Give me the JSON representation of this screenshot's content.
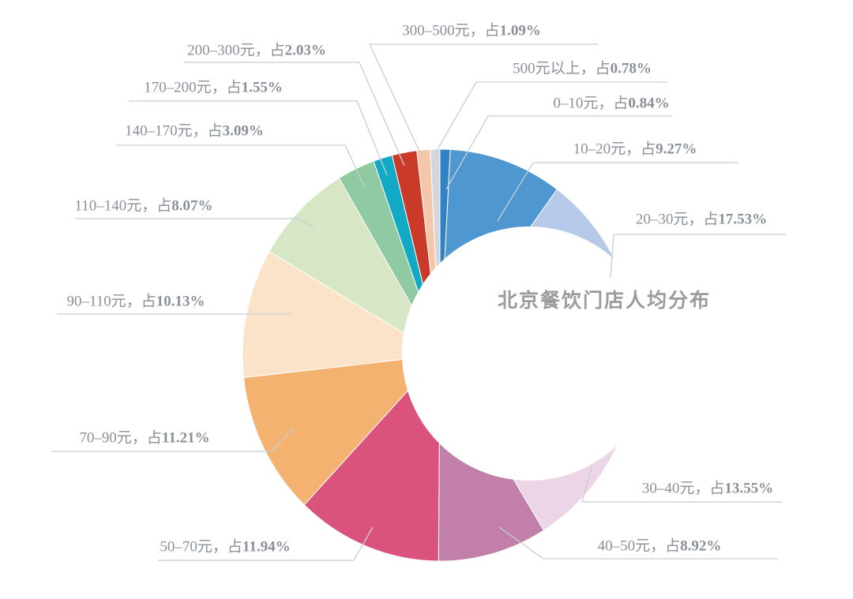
{
  "chart_data": {
    "type": "pie",
    "title": "北京餐饮门店人均分布",
    "style_hint": "crescent-moon pie: full pie with offset white inner circle, thick ring on left, tapering tips on right",
    "legend_position": "none",
    "background_color": "#ffffff",
    "leader_line_color": "#c8cdd3",
    "label_text_color": "#8a9097",
    "title_color": "#9b9b9b",
    "start_angle_deg": 0,
    "direction": "clockwise",
    "label_format": {
      "separator": "，",
      "pct_prefix": "占",
      "pct_suffix": "%"
    },
    "slices": [
      {
        "range": "0–10元",
        "pct": 0.84,
        "color": "#3182c4"
      },
      {
        "range": "10–20元",
        "pct": 9.27,
        "color": "#4f97d1"
      },
      {
        "range": "20–30元",
        "pct": 17.53,
        "color": "#b6c9e9"
      },
      {
        "range": "30–40元",
        "pct": 13.55,
        "color": "#ecd5e6"
      },
      {
        "range": "40–50元",
        "pct": 8.92,
        "color": "#c17fa9"
      },
      {
        "range": "50–70元",
        "pct": 11.94,
        "color": "#d9537d"
      },
      {
        "range": "70–90元",
        "pct": 11.21,
        "color": "#f4b270"
      },
      {
        "range": "90–110元",
        "pct": 10.13,
        "color": "#fae3c8"
      },
      {
        "range": "110–140元",
        "pct": 8.07,
        "color": "#d7e7c5"
      },
      {
        "range": "140–170元",
        "pct": 3.09,
        "color": "#8fcaa3"
      },
      {
        "range": "170–200元",
        "pct": 1.55,
        "color": "#12a9c4"
      },
      {
        "range": "200–300元",
        "pct": 2.03,
        "color": "#c93a29"
      },
      {
        "range": "300–500元",
        "pct": 1.09,
        "color": "#f5c7aa"
      },
      {
        "range": "500元以上",
        "pct": 0.78,
        "color": "#d3d7db"
      }
    ]
  }
}
